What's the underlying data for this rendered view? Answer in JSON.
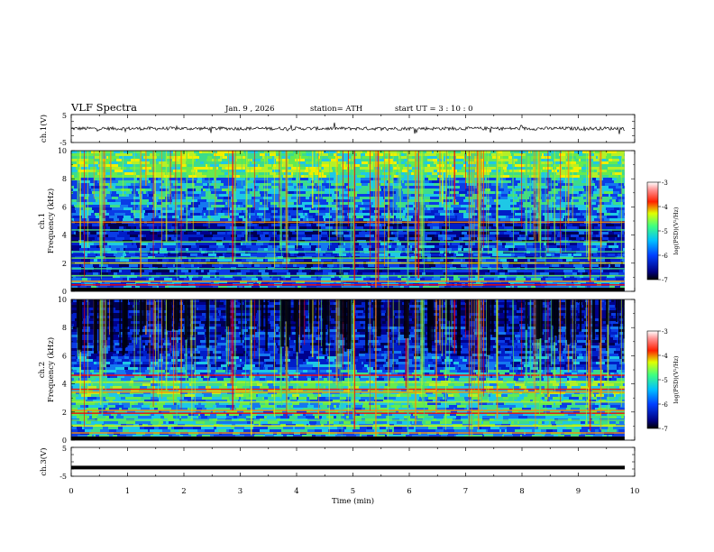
{
  "header": {
    "title": "VLF  Spectra",
    "date": "Jan.  9  , 2026",
    "station": "station= ATH",
    "start_ut": "start  UT  =   3  : 10 : 0"
  },
  "colors": {
    "spec_low": "#00007f",
    "spec_mid_blue": "#0a3cdc",
    "spec_cyan": "#22c8e6",
    "spec_green": "#4cdc3c",
    "spec_yellow": "#ffff00",
    "spec_red": "#ff0000",
    "trace": "#000000"
  },
  "chart_data": [
    {
      "type": "line",
      "panel": "ch1-waveform",
      "ylabel": "ch.1(V)",
      "ylim": [
        -5,
        5
      ],
      "yticks": [
        "5",
        "-5"
      ],
      "xlim": [
        0,
        10
      ],
      "description_series": "noisy trace near 0 V, occasional spikes",
      "series": [
        {
          "baseline": 0.0,
          "noise_amp": 0.6
        }
      ]
    },
    {
      "type": "heatmap",
      "panel": "ch1-spectrogram",
      "ylabel": "ch.1\nFrequency  (kHz)",
      "ylabel_lines": [
        "ch.1",
        "Frequency  (kHz)"
      ],
      "ylim": [
        0,
        10
      ],
      "yticks": [
        "0",
        "2",
        "4",
        "6",
        "8",
        "10"
      ],
      "xlim": [
        0,
        10
      ],
      "data_end_min": 9.82,
      "colorbar": {
        "label": "log(PSD)(V²/Hz)",
        "range": [
          -7,
          -3
        ],
        "ticks": [
          "-3",
          "-4",
          "-5",
          "-6",
          "-7"
        ]
      }
    },
    {
      "type": "heatmap",
      "panel": "ch2-spectrogram",
      "ylabel_lines": [
        "ch.2",
        "Frequency  (kHz)"
      ],
      "ylim": [
        0,
        10
      ],
      "yticks": [
        "0",
        "2",
        "4",
        "6",
        "8",
        "10"
      ],
      "xlim": [
        0,
        10
      ],
      "data_end_min": 9.82,
      "colorbar": {
        "label": "log(PSD)(V²/Hz)",
        "range": [
          -7,
          -3
        ],
        "ticks": [
          "-3",
          "-4",
          "-5",
          "-6",
          "-7"
        ]
      }
    },
    {
      "type": "line",
      "panel": "ch3-waveform",
      "ylabel": "ch.3(V)",
      "ylim": [
        -5,
        5
      ],
      "yticks": [
        "5",
        "-5"
      ],
      "xlim": [
        0,
        10
      ],
      "series": [
        {
          "constant": -2.0
        }
      ]
    }
  ],
  "xaxis": {
    "label": "Time  (min)",
    "ticks": [
      "0",
      "1",
      "2",
      "3",
      "4",
      "5",
      "6",
      "7",
      "8",
      "9",
      "10"
    ]
  }
}
